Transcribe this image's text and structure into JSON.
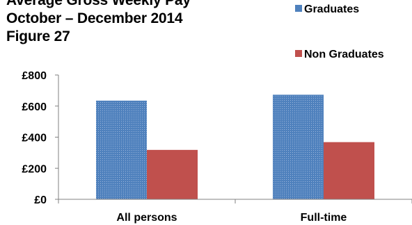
{
  "header": {
    "title_line_1": "Average Gross Weekly Pay",
    "title_line_2": "October – December 2014",
    "title_line_3": "Figure 27"
  },
  "colors": {
    "graduates": "#4f81bd",
    "non_graduates": "#c0504d",
    "axis": "#808080"
  },
  "chart_data": {
    "type": "bar",
    "title": "",
    "xlabel": "",
    "ylabel": "",
    "categories": [
      "All persons",
      "Full-time"
    ],
    "series": [
      {
        "name": "Graduates",
        "values": [
          635,
          673
        ]
      },
      {
        "name": "Non Graduates",
        "values": [
          318,
          368
        ]
      }
    ],
    "ylim": [
      0,
      800
    ],
    "yticks": [
      0,
      200,
      400,
      600,
      800
    ],
    "ytick_labels": [
      "£0",
      "£200",
      "£400",
      "£600",
      "£800"
    ],
    "grid": false,
    "legend_position": "top-right"
  }
}
